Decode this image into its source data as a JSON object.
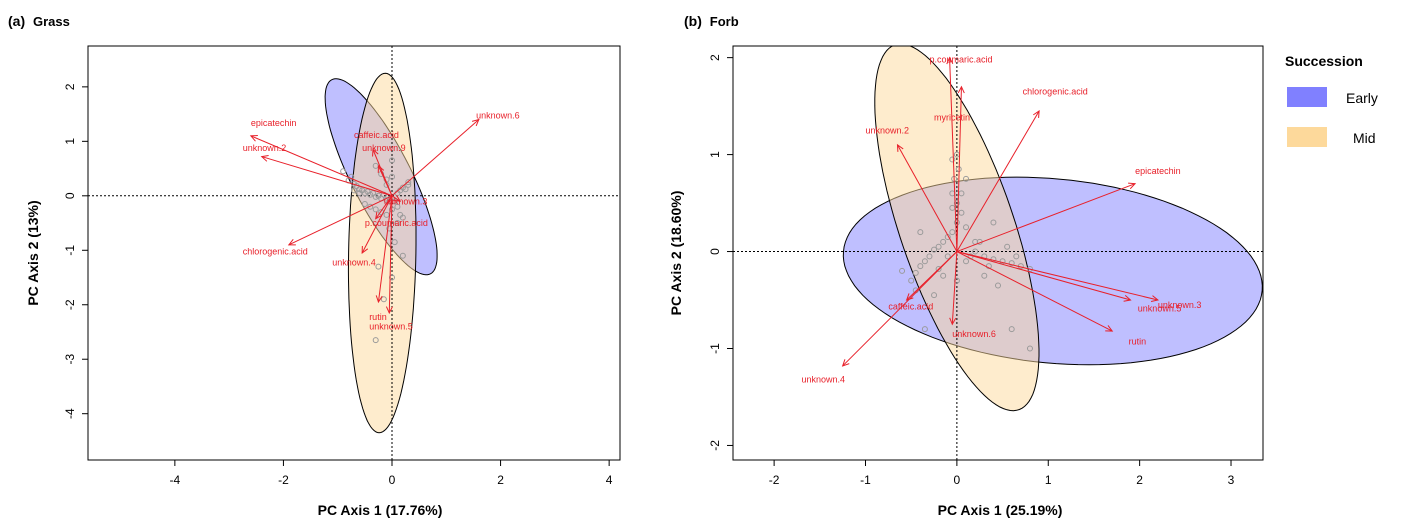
{
  "legend": {
    "title": "Succession",
    "items": [
      {
        "label": "Early",
        "color": "#8080ff"
      },
      {
        "label": "Mid",
        "color": "#fdd99b"
      }
    ]
  },
  "chart_data": [
    {
      "type": "scatter",
      "panel_label": "(a)",
      "title": "Grass",
      "xlabel": "PC Axis 1 (17.76%)",
      "ylabel": "PC Axis 2 (13%)",
      "xlim": [
        -5.6,
        4.2
      ],
      "ylim": [
        -4.85,
        2.75
      ],
      "xticks": [
        -4,
        -2,
        0,
        2,
        4
      ],
      "yticks": [
        -4,
        -3,
        -2,
        -1,
        0,
        1,
        2
      ],
      "reference_lines": [
        0,
        0
      ],
      "groups": [
        {
          "name": "Early",
          "color": "#8080ff",
          "ellipse": {
            "cx": -0.2,
            "cy": 0.35,
            "rx": 2.0,
            "ry": 0.55,
            "angle_deg": -63
          }
        },
        {
          "name": "Mid",
          "color": "#fdd99b",
          "ellipse": {
            "cx": -0.18,
            "cy": -1.05,
            "rx": 3.3,
            "ry": 0.62,
            "angle_deg": 89
          }
        }
      ],
      "vectors": [
        {
          "label": "epicatechin",
          "x": -2.6,
          "y": 1.1,
          "lx": -2.6,
          "ly": 1.28
        },
        {
          "label": "unknown.2",
          "x": -2.4,
          "y": 0.72,
          "lx": -2.75,
          "ly": 0.82
        },
        {
          "label": "caffeic.acid",
          "x": -0.35,
          "y": 0.85,
          "lx": -0.7,
          "ly": 1.06
        },
        {
          "label": "unknown.9",
          "x": -0.25,
          "y": 0.55,
          "lx": -0.55,
          "ly": 0.82
        },
        {
          "label": "unknown.6",
          "x": 1.6,
          "y": 1.4,
          "lx": 1.55,
          "ly": 1.42
        },
        {
          "label": "unknown.3",
          "x": 0.15,
          "y": -0.1,
          "lx": -0.15,
          "ly": -0.16
        },
        {
          "label": "p.coumaric.acid",
          "x": -0.3,
          "y": -0.42,
          "lx": -0.5,
          "ly": -0.55
        },
        {
          "label": "chlorogenic.acid",
          "x": -1.9,
          "y": -0.9,
          "lx": -2.75,
          "ly": -1.08
        },
        {
          "label": "unknown.4",
          "x": -0.55,
          "y": -1.05,
          "lx": -1.1,
          "ly": -1.28
        },
        {
          "label": "rutin",
          "x": -0.25,
          "y": -1.95,
          "lx": -0.42,
          "ly": -2.28
        },
        {
          "label": "unknown.5",
          "x": -0.05,
          "y": -2.15,
          "lx": -0.42,
          "ly": -2.45
        }
      ],
      "points": [
        [
          -0.8,
          0.28
        ],
        [
          -0.7,
          0.22
        ],
        [
          -0.65,
          0.18
        ],
        [
          -0.6,
          0.12
        ],
        [
          -0.55,
          0.1
        ],
        [
          -0.5,
          0.05
        ],
        [
          -0.45,
          0.08
        ],
        [
          -0.4,
          0.02
        ],
        [
          -0.35,
          0.05
        ],
        [
          -0.3,
          -0.02
        ],
        [
          -0.25,
          0.0
        ],
        [
          -0.2,
          -0.05
        ],
        [
          -0.15,
          0.02
        ],
        [
          -0.1,
          -0.08
        ],
        [
          -0.05,
          -0.1
        ],
        [
          0.0,
          -0.05
        ],
        [
          0.05,
          -0.1
        ],
        [
          0.1,
          0.05
        ],
        [
          0.15,
          0.1
        ],
        [
          0.2,
          0.15
        ],
        [
          0.25,
          0.12
        ],
        [
          0.3,
          0.2
        ],
        [
          -0.9,
          0.45
        ],
        [
          -0.75,
          0.35
        ],
        [
          -0.3,
          0.55
        ],
        [
          -0.2,
          0.4
        ],
        [
          -0.1,
          0.2
        ],
        [
          0.0,
          0.35
        ],
        [
          0.0,
          0.65
        ],
        [
          -0.1,
          0.3
        ],
        [
          -0.5,
          -0.15
        ],
        [
          -0.4,
          -0.2
        ],
        [
          -0.3,
          -0.25
        ],
        [
          -0.2,
          -0.3
        ],
        [
          -0.1,
          -0.35
        ],
        [
          0.0,
          -0.25
        ],
        [
          0.1,
          -0.2
        ],
        [
          0.15,
          -0.35
        ],
        [
          0.2,
          -0.4
        ],
        [
          -0.05,
          -0.6
        ],
        [
          0.1,
          -0.5
        ],
        [
          0.2,
          -1.1
        ],
        [
          0.0,
          -1.5
        ],
        [
          -0.15,
          -1.9
        ],
        [
          -0.3,
          -2.65
        ],
        [
          -0.25,
          -1.3
        ],
        [
          0.05,
          -0.85
        ],
        [
          -0.6,
          0.05
        ],
        [
          -0.7,
          0.1
        ],
        [
          0.3,
          0.25
        ]
      ]
    },
    {
      "type": "scatter",
      "panel_label": "(b)",
      "title": "Forb",
      "xlabel": "PC Axis 1 (25.19%)",
      "ylabel": "PC Axis 2 (18.60%)",
      "xlim": [
        -2.45,
        3.35
      ],
      "ylim": [
        -2.15,
        2.12
      ],
      "xticks": [
        -2,
        -1,
        0,
        1,
        2,
        3
      ],
      "yticks": [
        -2,
        -1,
        0,
        1,
        2
      ],
      "reference_lines": [
        0,
        0
      ],
      "groups": [
        {
          "name": "Early",
          "color": "#8080ff",
          "ellipse": {
            "cx": 1.05,
            "cy": -0.2,
            "rx": 2.3,
            "ry": 0.95,
            "angle_deg": -5
          }
        },
        {
          "name": "Mid",
          "color": "#fdd99b",
          "ellipse": {
            "cx": 0.0,
            "cy": 0.25,
            "rx": 2.0,
            "ry": 0.62,
            "angle_deg": -70
          }
        }
      ],
      "vectors": [
        {
          "label": "p.coumaric.acid",
          "x": -0.08,
          "y": 2.0,
          "lx": -0.3,
          "ly": 1.95
        },
        {
          "label": "myricetin",
          "x": 0.05,
          "y": 1.7,
          "lx": -0.25,
          "ly": 1.35
        },
        {
          "label": "chlorogenic.acid",
          "x": 0.9,
          "y": 1.45,
          "lx": 0.72,
          "ly": 1.62
        },
        {
          "label": "unknown.2",
          "x": -0.65,
          "y": 1.1,
          "lx": -1.0,
          "ly": 1.22
        },
        {
          "label": "epicatechin",
          "x": 1.95,
          "y": 0.7,
          "lx": 1.95,
          "ly": 0.8
        },
        {
          "label": "unknown.3",
          "x": 2.2,
          "y": -0.5,
          "lx": 2.2,
          "ly": -0.58
        },
        {
          "label": "unknown.5",
          "x": 1.9,
          "y": -0.5,
          "lx": 1.98,
          "ly": -0.62
        },
        {
          "label": "rutin",
          "x": 1.7,
          "y": -0.82,
          "lx": 1.88,
          "ly": -0.96
        },
        {
          "label": "caffeic.acid",
          "x": -0.55,
          "y": -0.5,
          "lx": -0.75,
          "ly": -0.6
        },
        {
          "label": "unknown.6",
          "x": -0.05,
          "y": -0.75,
          "lx": -0.05,
          "ly": -0.88
        },
        {
          "label": "unknown.4",
          "x": -1.25,
          "y": -1.18,
          "lx": -1.7,
          "ly": -1.35
        }
      ],
      "points": [
        [
          0.0,
          1.0
        ],
        [
          -0.05,
          0.95
        ],
        [
          0.02,
          0.85
        ],
        [
          -0.03,
          0.75
        ],
        [
          -0.05,
          0.6
        ],
        [
          0.0,
          0.5
        ],
        [
          -0.05,
          0.45
        ],
        [
          0.05,
          0.4
        ],
        [
          0.1,
          0.75
        ],
        [
          0.0,
          0.3
        ],
        [
          -0.05,
          0.2
        ],
        [
          -0.1,
          0.15
        ],
        [
          -0.15,
          0.1
        ],
        [
          -0.2,
          0.05
        ],
        [
          -0.25,
          0.02
        ],
        [
          -0.3,
          -0.05
        ],
        [
          -0.35,
          -0.1
        ],
        [
          -0.4,
          -0.15
        ],
        [
          -0.45,
          -0.22
        ],
        [
          -0.5,
          -0.3
        ],
        [
          -0.2,
          -0.18
        ],
        [
          0.1,
          -0.1
        ],
        [
          0.15,
          -0.05
        ],
        [
          0.2,
          0.0
        ],
        [
          0.3,
          -0.05
        ],
        [
          0.4,
          -0.08
        ],
        [
          0.5,
          -0.1
        ],
        [
          0.6,
          -0.12
        ],
        [
          0.7,
          -0.15
        ],
        [
          0.8,
          -0.18
        ],
        [
          0.3,
          -0.25
        ],
        [
          0.45,
          -0.35
        ],
        [
          0.25,
          0.1
        ],
        [
          0.1,
          0.25
        ],
        [
          -0.4,
          0.2
        ],
        [
          -0.45,
          -0.4
        ],
        [
          -0.6,
          -0.2
        ],
        [
          -0.35,
          -0.8
        ],
        [
          0.6,
          -0.8
        ],
        [
          0.8,
          -1.0
        ],
        [
          0.4,
          0.3
        ],
        [
          0.2,
          0.1
        ],
        [
          0.55,
          0.05
        ],
        [
          0.65,
          -0.05
        ],
        [
          0.35,
          -0.15
        ],
        [
          -0.1,
          -0.05
        ],
        [
          -0.15,
          -0.25
        ],
        [
          0.0,
          -0.3
        ],
        [
          -0.25,
          -0.45
        ],
        [
          0.05,
          0.6
        ]
      ]
    }
  ]
}
